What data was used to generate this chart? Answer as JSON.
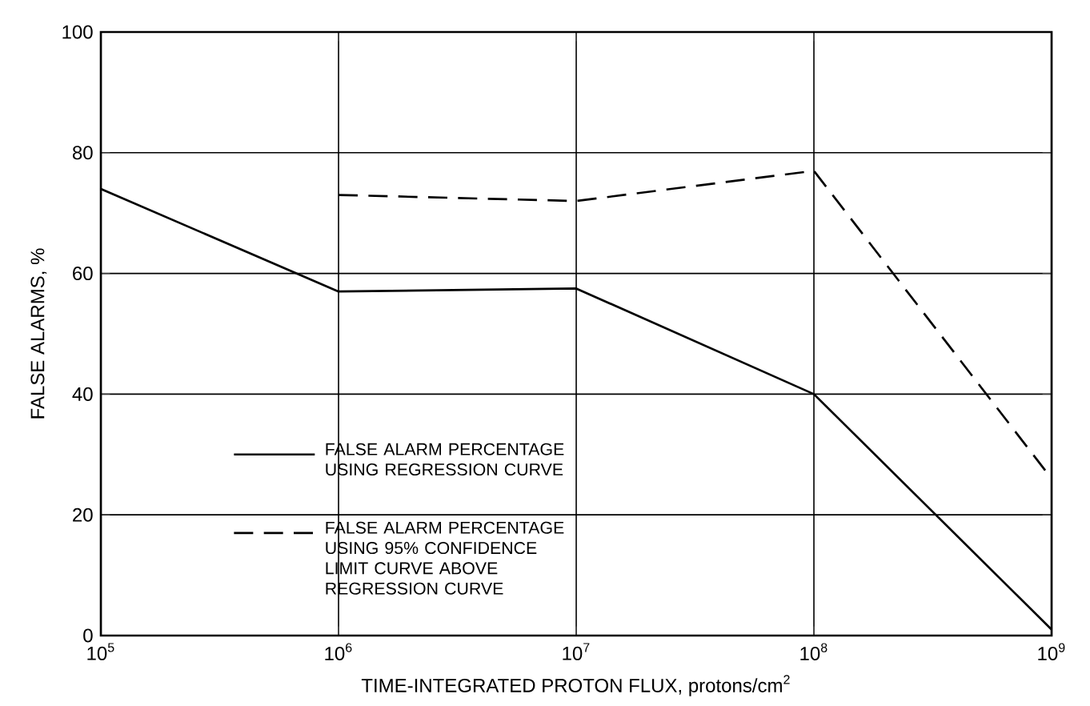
{
  "chart_data": {
    "type": "line",
    "xlabel": "TIME-INTEGRATED PROTON FLUX, protons/cm$^{2}$",
    "ylabel": "FALSE ALARMS, %",
    "log": "x",
    "xlim": [
      100000,
      1000000000
    ],
    "ylim": [
      0,
      100
    ],
    "xticks": [
      {
        "value": 100000,
        "label": "10$^{5}$"
      },
      {
        "value": 1000000,
        "label": "10$^{6}$"
      },
      {
        "value": 10000000,
        "label": "10$^{7}$"
      },
      {
        "value": 100000000,
        "label": "10$^{8}$"
      },
      {
        "value": 1000000000,
        "label": "10$^{9}$"
      }
    ],
    "yticks": [
      0,
      20,
      40,
      60,
      80,
      100
    ],
    "grid": true,
    "legend": "bottom left",
    "marker": "none",
    "series": [
      {
        "name": "FALSE ALARM PERCENTAGE USING REGRESSION CURVE",
        "color": "#000000",
        "line_style": "solid",
        "x": [
          100000,
          1000000,
          10000000,
          100000000,
          1000000000
        ],
        "values": [
          74,
          57,
          57.5,
          40,
          1
        ]
      },
      {
        "name": "FALSE ALARM PERCENTAGE USING 95% CONFIDENCE LIMIT CURVE ABOVE REGRESSION CURVE",
        "color": "#000000",
        "line_style": "dashed",
        "x": [
          1000000,
          10000000,
          100000000,
          1000000000
        ],
        "values": [
          73,
          72,
          77,
          26
        ]
      }
    ]
  }
}
